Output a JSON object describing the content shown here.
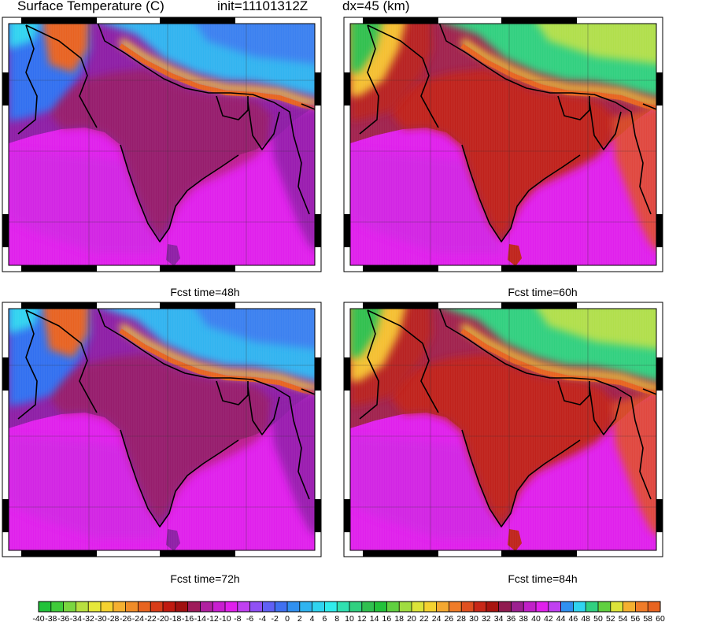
{
  "header": {
    "title": "Surface Temperature (C)",
    "init": "init=11101312Z",
    "dx": "dx=45 (km)"
  },
  "panels": [
    {
      "id": "p48",
      "caption": "Fcst time=48h",
      "regime": "cool"
    },
    {
      "id": "p60",
      "caption": "Fcst time=60h",
      "regime": "hot"
    },
    {
      "id": "p72",
      "caption": "Fcst time=72h",
      "regime": "cool"
    },
    {
      "id": "p84",
      "caption": "Fcst time=84h",
      "regime": "hot"
    }
  ],
  "colorbar": {
    "min": -40,
    "max": 60,
    "step": 2,
    "labels": [
      "-40",
      "-38",
      "-36",
      "-34",
      "-32",
      "-30",
      "-28",
      "-26",
      "-24",
      "-22",
      "-20",
      "-18",
      "-16",
      "-14",
      "-12",
      "-10",
      "-8",
      "-6",
      "-4",
      "-2",
      "0",
      "2",
      "4",
      "6",
      "8",
      "10",
      "12",
      "14",
      "16",
      "18",
      "20",
      "22",
      "24",
      "26",
      "28",
      "30",
      "32",
      "34",
      "36",
      "38",
      "40",
      "42",
      "44",
      "46",
      "48",
      "50",
      "52",
      "54",
      "56",
      "58",
      "60"
    ],
    "colors": [
      "#22c23a",
      "#40cc3a",
      "#7ad640",
      "#b8e040",
      "#e6e83a",
      "#f5d230",
      "#f5b030",
      "#f08c28",
      "#e86420",
      "#d83c18",
      "#c01a10",
      "#a01010",
      "#9e1a5a",
      "#b020a0",
      "#c81ed0",
      "#e020ec",
      "#c040f0",
      "#9050f5",
      "#6060f5",
      "#4070f0",
      "#3090f0",
      "#30b4f0",
      "#30d4f0",
      "#30ecec",
      "#30e0b0",
      "#30d080",
      "#30c050",
      "#22c23a",
      "#60d040",
      "#a0dc40",
      "#dce43a",
      "#f5d230",
      "#f5a830",
      "#f07c28",
      "#e05020",
      "#c82818",
      "#a81410",
      "#901a50",
      "#9c2090",
      "#c020c8",
      "#e020ec",
      "#c040f0",
      "#3090f0",
      "#30d4f0",
      "#30d080",
      "#60d040",
      "#dce43a",
      "#f5b030",
      "#f07c28",
      "#e86420"
    ]
  }
}
